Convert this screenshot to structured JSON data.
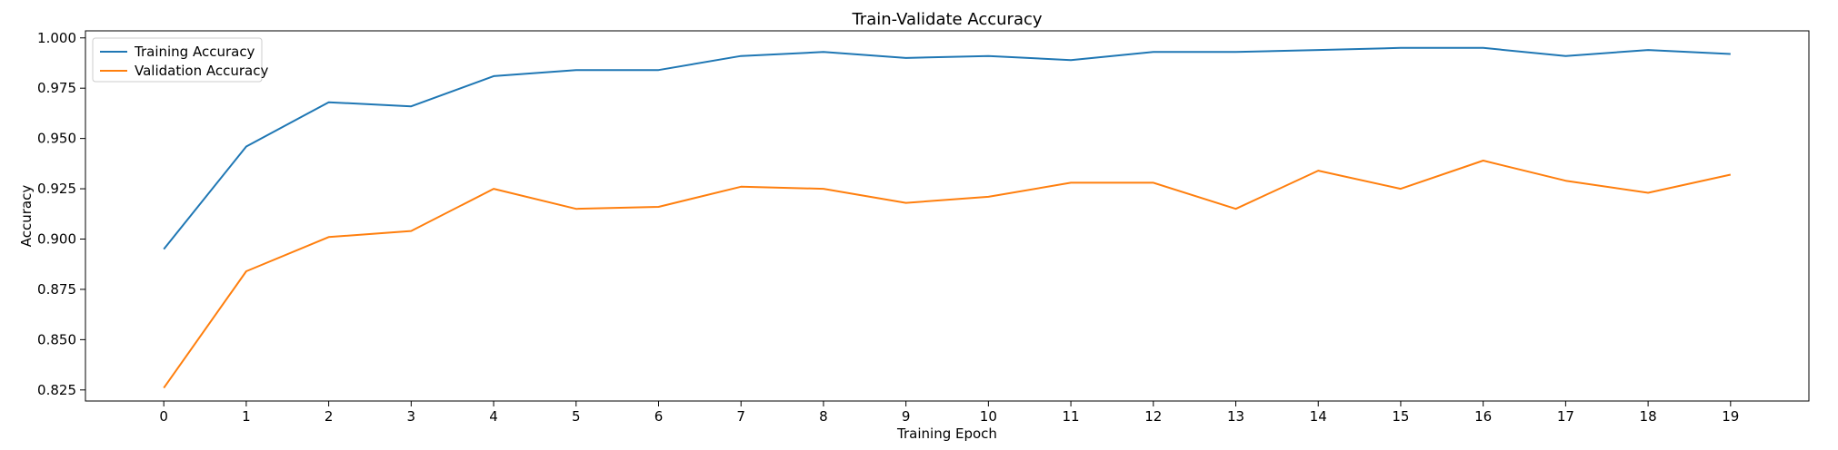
{
  "chart_data": {
    "type": "line",
    "title": "Train-Validate Accuracy",
    "xlabel": "Training Epoch",
    "ylabel": "Accuracy",
    "x": [
      0,
      1,
      2,
      3,
      4,
      5,
      6,
      7,
      8,
      9,
      10,
      11,
      12,
      13,
      14,
      15,
      16,
      17,
      18,
      19
    ],
    "x_ticks": [
      "0",
      "1",
      "2",
      "3",
      "4",
      "5",
      "6",
      "7",
      "8",
      "9",
      "10",
      "11",
      "12",
      "13",
      "14",
      "15",
      "16",
      "17",
      "18",
      "19"
    ],
    "xlim": [
      -0.95,
      19.95
    ],
    "ylim": [
      0.8195,
      1.0035
    ],
    "y_ticks": [
      0.825,
      0.85,
      0.875,
      0.9,
      0.925,
      0.95,
      0.975,
      1.0
    ],
    "y_tick_labels": [
      "0.825",
      "0.850",
      "0.875",
      "0.900",
      "0.925",
      "0.950",
      "0.975",
      "1.000"
    ],
    "grid": false,
    "legend_position": "top-left",
    "series": [
      {
        "name": "Training Accuracy",
        "color": "#1f77b4",
        "values": [
          0.895,
          0.946,
          0.968,
          0.966,
          0.981,
          0.984,
          0.984,
          0.991,
          0.993,
          0.99,
          0.991,
          0.989,
          0.993,
          0.993,
          0.994,
          0.995,
          0.995,
          0.991,
          0.994,
          0.992
        ]
      },
      {
        "name": "Validation Accuracy",
        "color": "#ff7f0e",
        "values": [
          0.826,
          0.884,
          0.901,
          0.904,
          0.925,
          0.915,
          0.916,
          0.926,
          0.925,
          0.918,
          0.921,
          0.928,
          0.928,
          0.915,
          0.934,
          0.925,
          0.939,
          0.929,
          0.923,
          0.932
        ]
      }
    ]
  }
}
